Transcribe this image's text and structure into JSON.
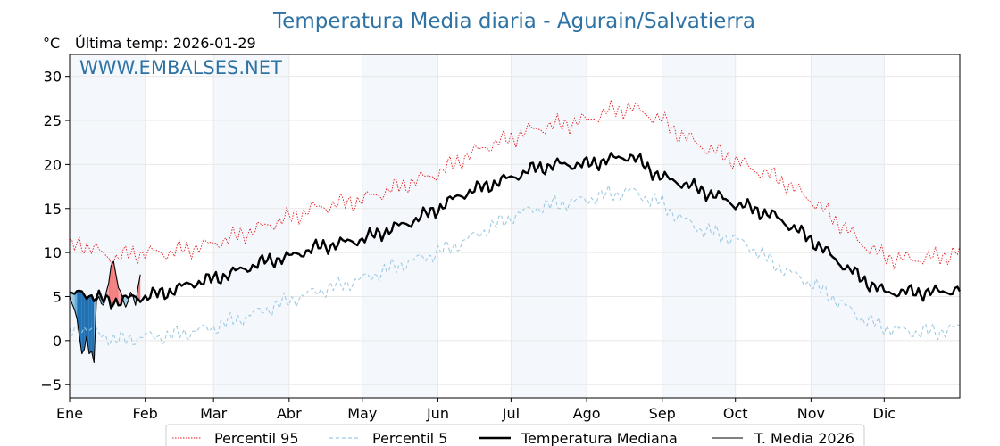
{
  "chart_data": {
    "type": "line",
    "title": "Temperatura Media diaria - Agurain/Salvatierra",
    "unit_label": "°C",
    "last_temp_label": "Última temp: 2026-01-29",
    "watermark": "WWW.EMBALSES.NET",
    "ylim": [
      -6.5,
      32.5
    ],
    "yticks": [
      -5,
      0,
      5,
      10,
      15,
      20,
      25,
      30
    ],
    "ytick_labels": [
      "−5",
      "0",
      "5",
      "10",
      "15",
      "20",
      "25",
      "30"
    ],
    "xlim": [
      0,
      365
    ],
    "months": [
      {
        "label": "Ene",
        "day": 0
      },
      {
        "label": "Feb",
        "day": 31
      },
      {
        "label": "Mar",
        "day": 59
      },
      {
        "label": "Abr",
        "day": 90
      },
      {
        "label": "May",
        "day": 120
      },
      {
        "label": "Jun",
        "day": 151
      },
      {
        "label": "Jul",
        "day": 181
      },
      {
        "label": "Ago",
        "day": 212
      },
      {
        "label": "Sep",
        "day": 243
      },
      {
        "label": "Oct",
        "day": 273
      },
      {
        "label": "Nov",
        "day": 304
      },
      {
        "label": "Dic",
        "day": 334
      }
    ],
    "shaded_month_spans": [
      [
        0,
        31
      ],
      [
        59,
        90
      ],
      [
        120,
        151
      ],
      [
        181,
        212
      ],
      [
        243,
        273
      ],
      [
        304,
        334
      ]
    ],
    "grid": true,
    "legend_position": "bottom",
    "series": [
      {
        "name": "Percentil 95",
        "color": "#e41a1c",
        "style": "dotted",
        "points": [
          [
            0,
            10.5
          ],
          [
            5,
            11
          ],
          [
            10,
            10.5
          ],
          [
            15,
            9.5
          ],
          [
            20,
            9.5
          ],
          [
            25,
            9.8
          ],
          [
            31,
            10
          ],
          [
            40,
            10
          ],
          [
            50,
            10.5
          ],
          [
            59,
            11
          ],
          [
            70,
            12
          ],
          [
            80,
            13
          ],
          [
            90,
            14
          ],
          [
            100,
            15
          ],
          [
            110,
            15.5
          ],
          [
            120,
            16
          ],
          [
            130,
            17
          ],
          [
            140,
            18
          ],
          [
            151,
            19
          ],
          [
            160,
            20.5
          ],
          [
            170,
            22
          ],
          [
            181,
            23
          ],
          [
            190,
            24
          ],
          [
            200,
            24.5
          ],
          [
            212,
            25
          ],
          [
            220,
            26
          ],
          [
            230,
            26.5
          ],
          [
            243,
            25
          ],
          [
            250,
            23.5
          ],
          [
            260,
            22
          ],
          [
            273,
            20.5
          ],
          [
            280,
            19.5
          ],
          [
            290,
            18.5
          ],
          [
            304,
            16
          ],
          [
            315,
            13.5
          ],
          [
            325,
            11
          ],
          [
            334,
            9.5
          ],
          [
            345,
            9.2
          ],
          [
            355,
            9.5
          ],
          [
            365,
            10
          ]
        ]
      },
      {
        "name": "Percentil 5",
        "color": "#9ecae1",
        "style": "dashed",
        "points": [
          [
            0,
            1
          ],
          [
            5,
            1.5
          ],
          [
            10,
            1
          ],
          [
            15,
            0.5
          ],
          [
            20,
            0
          ],
          [
            25,
            0.2
          ],
          [
            31,
            0.5
          ],
          [
            40,
            0.5
          ],
          [
            50,
            1
          ],
          [
            59,
            1.5
          ],
          [
            70,
            2.5
          ],
          [
            80,
            3.5
          ],
          [
            90,
            4.5
          ],
          [
            100,
            5.5
          ],
          [
            110,
            6.2
          ],
          [
            120,
            7
          ],
          [
            130,
            8
          ],
          [
            140,
            9
          ],
          [
            151,
            10
          ],
          [
            160,
            11
          ],
          [
            170,
            12.5
          ],
          [
            181,
            14
          ],
          [
            190,
            15
          ],
          [
            200,
            15.5
          ],
          [
            212,
            16
          ],
          [
            220,
            16.5
          ],
          [
            230,
            17
          ],
          [
            243,
            15.5
          ],
          [
            250,
            14
          ],
          [
            260,
            12.5
          ],
          [
            273,
            11.5
          ],
          [
            280,
            10.5
          ],
          [
            290,
            8.5
          ],
          [
            304,
            6.5
          ],
          [
            315,
            4.5
          ],
          [
            325,
            2.5
          ],
          [
            334,
            1.5
          ],
          [
            345,
            1
          ],
          [
            355,
            1
          ],
          [
            365,
            1.5
          ]
        ]
      },
      {
        "name": "Temperatura Mediana",
        "color": "#000000",
        "style": "solid-bold",
        "points": [
          [
            0,
            5
          ],
          [
            5,
            5.5
          ],
          [
            10,
            5
          ],
          [
            15,
            4.5
          ],
          [
            20,
            4.5
          ],
          [
            25,
            4.8
          ],
          [
            31,
            5
          ],
          [
            40,
            5.5
          ],
          [
            50,
            6.5
          ],
          [
            59,
            7
          ],
          [
            70,
            8
          ],
          [
            80,
            9
          ],
          [
            90,
            9.5
          ],
          [
            100,
            10.5
          ],
          [
            110,
            11
          ],
          [
            120,
            11.5
          ],
          [
            130,
            12.5
          ],
          [
            140,
            13.5
          ],
          [
            151,
            15
          ],
          [
            160,
            16.5
          ],
          [
            170,
            17.5
          ],
          [
            181,
            18.5
          ],
          [
            190,
            19.5
          ],
          [
            200,
            20
          ],
          [
            212,
            20
          ],
          [
            220,
            20.5
          ],
          [
            230,
            21
          ],
          [
            243,
            18.5
          ],
          [
            250,
            18
          ],
          [
            260,
            17
          ],
          [
            273,
            15.5
          ],
          [
            280,
            15
          ],
          [
            290,
            14
          ],
          [
            304,
            11.5
          ],
          [
            315,
            9
          ],
          [
            325,
            7
          ],
          [
            334,
            5.5
          ],
          [
            345,
            5.5
          ],
          [
            355,
            5.5
          ],
          [
            365,
            5.8
          ]
        ]
      },
      {
        "name": "T. Media 2026",
        "color": "#000000",
        "style": "solid-thin",
        "points": [
          [
            0,
            5
          ],
          [
            1,
            4.2
          ],
          [
            2,
            3.5
          ],
          [
            3,
            2.5
          ],
          [
            4,
            0.5
          ],
          [
            5,
            -1.5
          ],
          [
            6,
            -1
          ],
          [
            7,
            0.5
          ],
          [
            8,
            -1.5
          ],
          [
            9,
            -1.2
          ],
          [
            10,
            -2.5
          ],
          [
            11,
            4.5
          ],
          [
            12,
            5
          ],
          [
            13,
            4.2
          ],
          [
            14,
            4
          ],
          [
            15,
            5.5
          ],
          [
            16,
            6.5
          ],
          [
            17,
            8.5
          ],
          [
            18,
            9
          ],
          [
            19,
            7.5
          ],
          [
            20,
            6
          ],
          [
            21,
            5.5
          ],
          [
            22,
            4.5
          ],
          [
            23,
            3.8
          ],
          [
            24,
            4.5
          ],
          [
            25,
            5.5
          ],
          [
            26,
            5
          ],
          [
            27,
            4
          ],
          [
            28,
            6
          ],
          [
            29,
            7.5
          ]
        ]
      }
    ]
  },
  "legend": {
    "items": [
      {
        "label": "Percentil 95",
        "color": "#e41a1c"
      },
      {
        "label": "Percentil 5",
        "color": "#9ecae1"
      },
      {
        "label": "Temperatura Mediana",
        "color": "#000000"
      },
      {
        "label": "T. Media 2026",
        "color": "#000000"
      }
    ]
  }
}
